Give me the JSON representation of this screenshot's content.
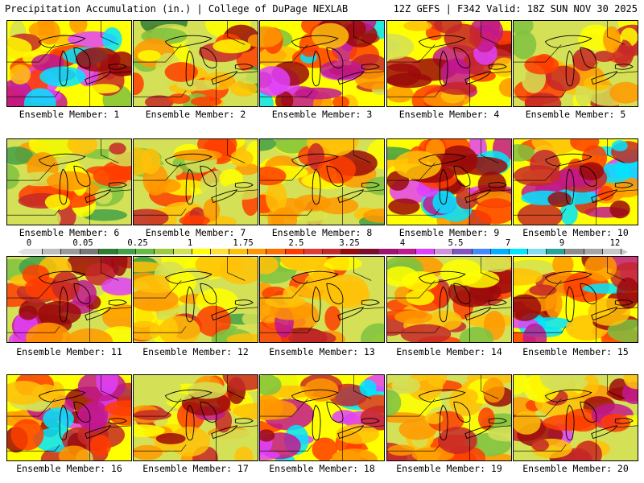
{
  "header": {
    "left": "Precipitation Accumulation (in.) | College of DuPage NEXLAB",
    "right": "12Z GEFS | F342 Valid: 18Z SUN NOV 30 2025"
  },
  "legend": {
    "ticks": [
      "0",
      "0.05",
      "0.25",
      "1",
      "1.75",
      "2.5",
      "3.25",
      "4",
      "5.5",
      "7",
      "9",
      "12"
    ],
    "colors": [
      "#e0e0e0",
      "#bdbdbd",
      "#9a9a9a",
      "#787878",
      "#2e7d32",
      "#43a047",
      "#66bb45",
      "#9ccc3c",
      "#d4e157",
      "#ffff00",
      "#ffe135",
      "#ffc107",
      "#ff9800",
      "#ff6f00",
      "#ff3d00",
      "#e53935",
      "#c62828",
      "#9b0a0a",
      "#7b0c2b",
      "#a0126e",
      "#c2188f",
      "#e040fb",
      "#ce93d8",
      "#7e57c2",
      "#448aff",
      "#00b0ff",
      "#00e5ff",
      "#80deea",
      "#26a69a",
      "#8d8d8d",
      "#a5a5a5",
      "#c8c8c8"
    ]
  },
  "members": [
    {
      "label": "Ensemble Member: 1",
      "intensity": 0.85
    },
    {
      "label": "Ensemble Member: 2",
      "intensity": 0.35
    },
    {
      "label": "Ensemble Member: 3",
      "intensity": 0.9
    },
    {
      "label": "Ensemble Member: 4",
      "intensity": 0.75
    },
    {
      "label": "Ensemble Member: 5",
      "intensity": 0.45
    },
    {
      "label": "Ensemble Member: 6",
      "intensity": 0.35
    },
    {
      "label": "Ensemble Member: 7",
      "intensity": 0.4
    },
    {
      "label": "Ensemble Member: 8",
      "intensity": 0.45
    },
    {
      "label": "Ensemble Member: 9",
      "intensity": 0.95
    },
    {
      "label": "Ensemble Member: 10",
      "intensity": 0.9
    },
    {
      "label": "Ensemble Member: 11",
      "intensity": 0.65
    },
    {
      "label": "Ensemble Member: 12",
      "intensity": 0.35
    },
    {
      "label": "Ensemble Member: 13",
      "intensity": 0.55
    },
    {
      "label": "Ensemble Member: 14",
      "intensity": 0.45
    },
    {
      "label": "Ensemble Member: 15",
      "intensity": 0.8
    },
    {
      "label": "Ensemble Member: 16",
      "intensity": 0.8
    },
    {
      "label": "Ensemble Member: 17",
      "intensity": 0.5
    },
    {
      "label": "Ensemble Member: 18",
      "intensity": 0.85
    },
    {
      "label": "Ensemble Member: 19",
      "intensity": 0.4
    },
    {
      "label": "Ensemble Member: 20",
      "intensity": 0.6
    }
  ]
}
